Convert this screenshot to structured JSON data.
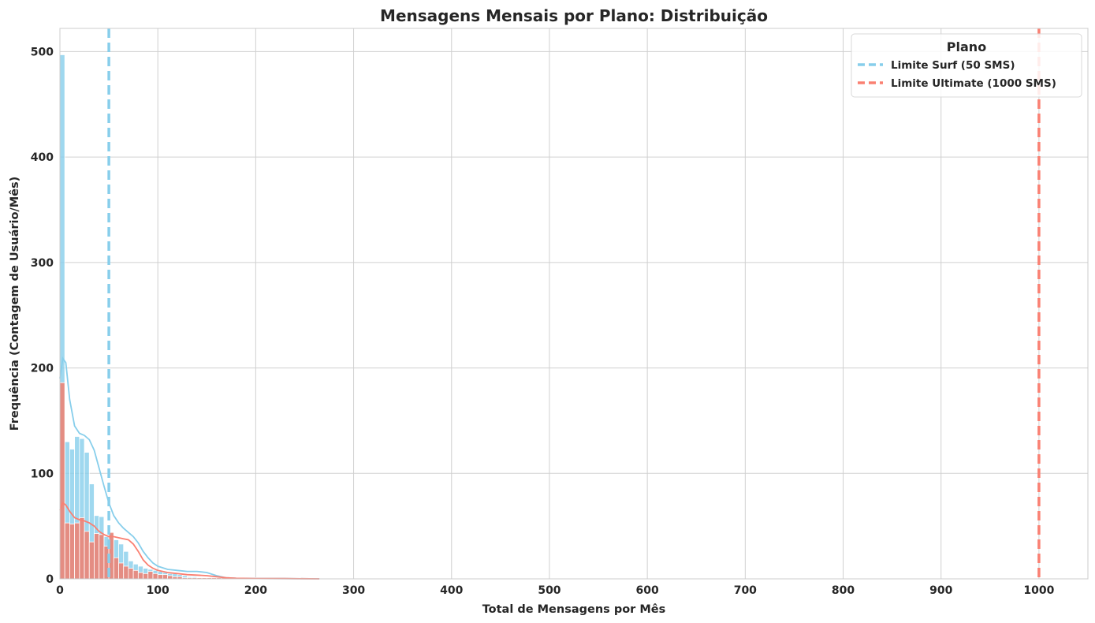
{
  "chart_data": {
    "type": "histogram",
    "title": "Mensagens Mensais por Plano: Distribuição",
    "xlabel": "Total de Mensagens por Mês",
    "ylabel": "Frequência (Contagem de Usuário/Mês)",
    "xlim": [
      0,
      1050
    ],
    "ylim": [
      0,
      522
    ],
    "x_ticks": [
      0,
      100,
      200,
      300,
      400,
      500,
      600,
      700,
      800,
      900,
      1000
    ],
    "y_ticks": [
      0,
      100,
      200,
      300,
      400,
      500
    ],
    "grid": true,
    "bin_width": 5,
    "legend": {
      "title": "Plano",
      "placement": "top-right",
      "entries": [
        "Limite Surf (50 SMS)",
        "Limite Ultimate (1000 SMS)"
      ]
    },
    "colors": {
      "surf": "#87CEEB",
      "ultimate": "#F08070",
      "surf_line": "#87CEEB",
      "ultimate_line": "#FA8072"
    },
    "reference_lines": [
      {
        "x": 50,
        "label": "Limite Surf (50 SMS)",
        "style": "dashed",
        "color": "#87CEEB"
      },
      {
        "x": 1000,
        "label": "Limite Ultimate (1000 SMS)",
        "style": "dashed",
        "color": "#FA8072"
      }
    ],
    "series": [
      {
        "plan": "surf",
        "bins_start": 0,
        "counts": [
          497,
          130,
          123,
          135,
          133,
          120,
          90,
          60,
          59,
          40,
          43,
          37,
          33,
          26,
          17,
          14,
          12,
          10,
          9,
          8,
          7,
          6,
          5,
          5,
          4,
          3,
          2,
          2,
          1,
          1,
          1,
          1,
          1,
          1,
          1,
          1,
          1,
          1,
          1,
          1,
          1,
          1,
          1,
          1,
          1,
          1,
          1,
          1,
          1,
          1,
          1,
          1,
          1
        ]
      },
      {
        "plan": "ultimate",
        "bins_start": 0,
        "counts": [
          186,
          53,
          52,
          53,
          58,
          45,
          35,
          43,
          42,
          31,
          44,
          20,
          15,
          12,
          10,
          8,
          6,
          5,
          7,
          5,
          4,
          4,
          3,
          2,
          2,
          1,
          1,
          1,
          1,
          1,
          1,
          1,
          1,
          1,
          1,
          1,
          1,
          1,
          1,
          1,
          1,
          1,
          1,
          1,
          1,
          1,
          1,
          1,
          1,
          1,
          1,
          1,
          1
        ]
      }
    ],
    "kde": [
      {
        "plan": "surf",
        "points": [
          [
            0,
            190
          ],
          [
            3,
            209
          ],
          [
            6,
            205
          ],
          [
            10,
            170
          ],
          [
            15,
            145
          ],
          [
            20,
            138
          ],
          [
            25,
            136
          ],
          [
            30,
            132
          ],
          [
            35,
            122
          ],
          [
            40,
            105
          ],
          [
            45,
            88
          ],
          [
            50,
            72
          ],
          [
            55,
            60
          ],
          [
            60,
            53
          ],
          [
            65,
            48
          ],
          [
            70,
            44
          ],
          [
            75,
            40
          ],
          [
            80,
            34
          ],
          [
            85,
            26
          ],
          [
            90,
            20
          ],
          [
            95,
            15
          ],
          [
            100,
            12
          ],
          [
            110,
            9
          ],
          [
            120,
            8
          ],
          [
            130,
            7
          ],
          [
            140,
            7
          ],
          [
            150,
            6
          ],
          [
            160,
            3
          ],
          [
            170,
            1
          ],
          [
            180,
            0.5
          ],
          [
            200,
            0.3
          ],
          [
            230,
            0.2
          ],
          [
            265,
            0
          ]
        ]
      },
      {
        "plan": "ultimate",
        "points": [
          [
            0,
            65
          ],
          [
            3,
            72
          ],
          [
            6,
            70
          ],
          [
            10,
            64
          ],
          [
            15,
            58
          ],
          [
            20,
            56
          ],
          [
            25,
            55
          ],
          [
            30,
            53
          ],
          [
            35,
            50
          ],
          [
            40,
            45
          ],
          [
            45,
            42
          ],
          [
            50,
            40
          ],
          [
            55,
            40
          ],
          [
            60,
            39
          ],
          [
            65,
            38
          ],
          [
            70,
            37
          ],
          [
            75,
            33
          ],
          [
            80,
            26
          ],
          [
            85,
            18
          ],
          [
            90,
            13
          ],
          [
            95,
            10
          ],
          [
            100,
            8
          ],
          [
            110,
            6
          ],
          [
            120,
            5
          ],
          [
            130,
            4
          ],
          [
            140,
            3.5
          ],
          [
            150,
            3
          ],
          [
            160,
            2
          ],
          [
            170,
            1
          ],
          [
            180,
            0.5
          ],
          [
            200,
            0.3
          ],
          [
            230,
            0.2
          ],
          [
            265,
            0
          ]
        ]
      }
    ]
  }
}
